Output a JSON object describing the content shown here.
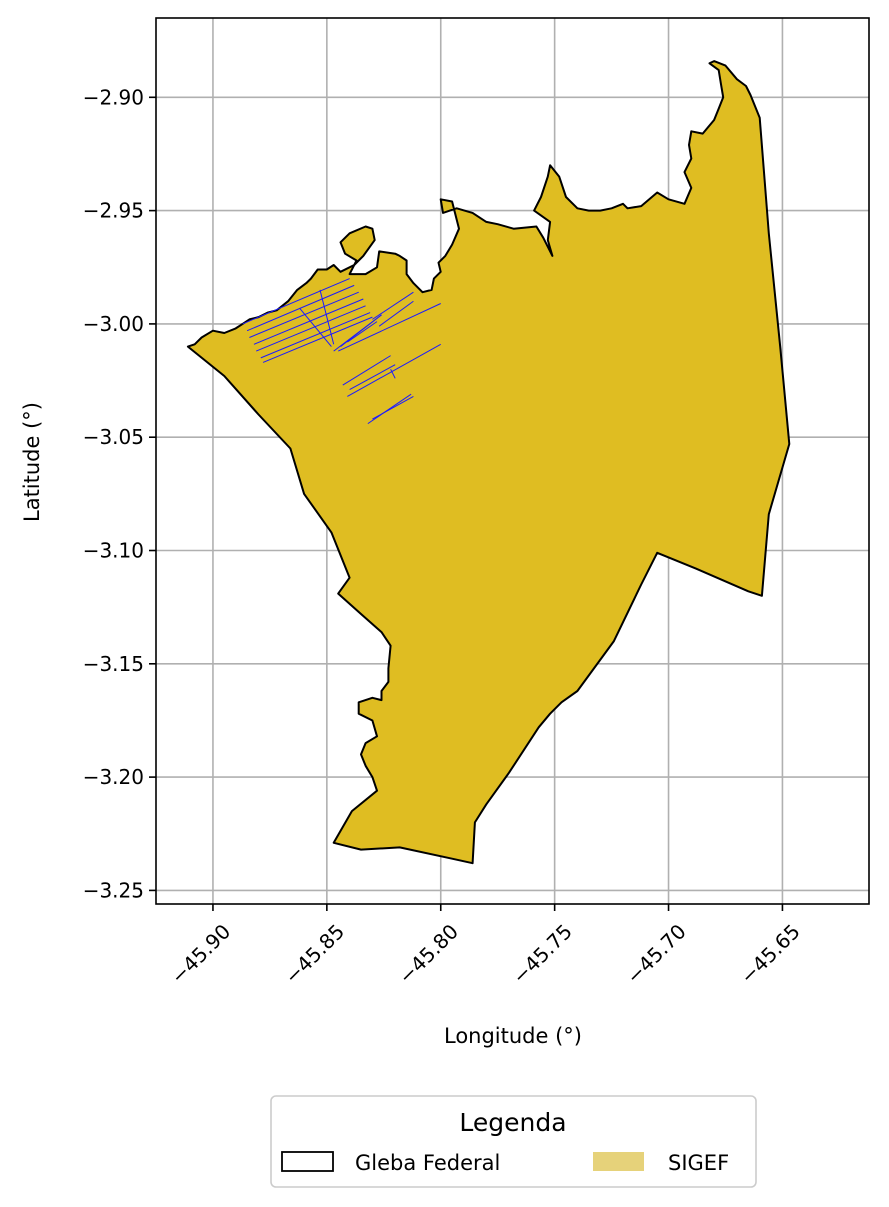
{
  "chart_data": {
    "type": "map",
    "xlabel": "Longitude (°)",
    "ylabel": "Latitude (°)",
    "xlim": [
      -45.925,
      -45.612
    ],
    "ylim": [
      -3.256,
      -2.865
    ],
    "x_ticks": [
      -45.9,
      -45.85,
      -45.8,
      -45.75,
      -45.7,
      -45.65
    ],
    "x_tick_labels": [
      "−45.90",
      "−45.85",
      "−45.80",
      "−45.75",
      "−45.70",
      "−45.65"
    ],
    "y_ticks": [
      -2.9,
      -2.95,
      -3.0,
      -3.05,
      -3.1,
      -3.15,
      -3.2,
      -3.25
    ],
    "y_tick_labels": [
      "−2.90",
      "−2.95",
      "−3.00",
      "−3.05",
      "−3.10",
      "−3.15",
      "−3.20",
      "−3.25"
    ],
    "grid": true,
    "legend": {
      "title": "Legenda",
      "placement": "bottom-center",
      "entries": [
        {
          "label": "Gleba Federal",
          "style": "outline",
          "color": "#000000"
        },
        {
          "label": "SIGEF",
          "style": "fill",
          "color": "#e6d27a"
        }
      ]
    },
    "colors": {
      "gleba_fill": "#dfbd22",
      "gleba_edge": "#000000",
      "sigef_edge": "#1a1aff"
    },
    "gleba_boundary": [
      [
        -45.911,
        -3.01
      ],
      [
        -45.895,
        -3.023
      ],
      [
        -45.88,
        -3.04
      ],
      [
        -45.866,
        -3.055
      ],
      [
        -45.86,
        -3.075
      ],
      [
        -45.848,
        -3.092
      ],
      [
        -45.84,
        -3.112
      ],
      [
        -45.845,
        -3.119
      ],
      [
        -45.835,
        -3.128
      ],
      [
        -45.826,
        -3.136
      ],
      [
        -45.822,
        -3.142
      ],
      [
        -45.823,
        -3.152
      ],
      [
        -45.823,
        -3.158
      ],
      [
        -45.826,
        -3.162
      ],
      [
        -45.826,
        -3.166
      ],
      [
        -45.83,
        -3.165
      ],
      [
        -45.836,
        -3.167
      ],
      [
        -45.836,
        -3.172
      ],
      [
        -45.83,
        -3.175
      ],
      [
        -45.828,
        -3.182
      ],
      [
        -45.833,
        -3.185
      ],
      [
        -45.835,
        -3.19
      ],
      [
        -45.833,
        -3.195
      ],
      [
        -45.83,
        -3.2
      ],
      [
        -45.828,
        -3.206
      ],
      [
        -45.839,
        -3.215
      ],
      [
        -45.847,
        -3.229
      ],
      [
        -45.835,
        -3.232
      ],
      [
        -45.818,
        -3.231
      ],
      [
        -45.795,
        -3.236
      ],
      [
        -45.786,
        -3.238
      ],
      [
        -45.785,
        -3.22
      ],
      [
        -45.78,
        -3.212
      ],
      [
        -45.77,
        -3.198
      ],
      [
        -45.757,
        -3.178
      ],
      [
        -45.752,
        -3.172
      ],
      [
        -45.747,
        -3.167
      ],
      [
        -45.74,
        -3.162
      ],
      [
        -45.724,
        -3.14
      ],
      [
        -45.712,
        -3.115
      ],
      [
        -45.705,
        -3.101
      ],
      [
        -45.688,
        -3.108
      ],
      [
        -45.665,
        -3.118
      ],
      [
        -45.659,
        -3.12
      ],
      [
        -45.656,
        -3.084
      ],
      [
        -45.647,
        -3.053
      ],
      [
        -45.651,
        -3.01
      ],
      [
        -45.656,
        -2.96
      ],
      [
        -45.66,
        -2.909
      ],
      [
        -45.664,
        -2.899
      ],
      [
        -45.666,
        -2.895
      ],
      [
        -45.67,
        -2.892
      ],
      [
        -45.675,
        -2.886
      ],
      [
        -45.68,
        -2.884
      ],
      [
        -45.682,
        -2.885
      ],
      [
        -45.678,
        -2.888
      ],
      [
        -45.677,
        -2.894
      ],
      [
        -45.676,
        -2.9
      ],
      [
        -45.678,
        -2.905
      ],
      [
        -45.68,
        -2.91
      ],
      [
        -45.685,
        -2.916
      ],
      [
        -45.69,
        -2.915
      ],
      [
        -45.691,
        -2.921
      ],
      [
        -45.69,
        -2.927
      ],
      [
        -45.693,
        -2.933
      ],
      [
        -45.69,
        -2.94
      ],
      [
        -45.693,
        -2.947
      ],
      [
        -45.7,
        -2.945
      ],
      [
        -45.705,
        -2.942
      ],
      [
        -45.712,
        -2.948
      ],
      [
        -45.718,
        -2.949
      ],
      [
        -45.72,
        -2.947
      ],
      [
        -45.725,
        -2.949
      ],
      [
        -45.73,
        -2.95
      ],
      [
        -45.735,
        -2.95
      ],
      [
        -45.74,
        -2.949
      ],
      [
        -45.745,
        -2.944
      ],
      [
        -45.748,
        -2.935
      ],
      [
        -45.752,
        -2.93
      ],
      [
        -45.753,
        -2.935
      ],
      [
        -45.756,
        -2.944
      ],
      [
        -45.759,
        -2.95
      ],
      [
        -45.752,
        -2.955
      ],
      [
        -45.753,
        -2.963
      ],
      [
        -45.751,
        -2.97
      ],
      [
        -45.755,
        -2.962
      ],
      [
        -45.758,
        -2.957
      ],
      [
        -45.768,
        -2.958
      ],
      [
        -45.775,
        -2.956
      ],
      [
        -45.78,
        -2.955
      ],
      [
        -45.786,
        -2.951
      ],
      [
        -45.793,
        -2.949
      ],
      [
        -45.796,
        -2.95
      ],
      [
        -45.799,
        -2.951
      ],
      [
        -45.8,
        -2.945
      ],
      [
        -45.795,
        -2.946
      ],
      [
        -45.792,
        -2.958
      ],
      [
        -45.795,
        -2.965
      ],
      [
        -45.798,
        -2.97
      ],
      [
        -45.801,
        -2.973
      ],
      [
        -45.8,
        -2.977
      ],
      [
        -45.803,
        -2.98
      ],
      [
        -45.804,
        -2.985
      ],
      [
        -45.808,
        -2.986
      ],
      [
        -45.812,
        -2.982
      ],
      [
        -45.815,
        -2.978
      ],
      [
        -45.815,
        -2.972
      ],
      [
        -45.818,
        -2.97
      ],
      [
        -45.82,
        -2.969
      ],
      [
        -45.827,
        -2.968
      ],
      [
        -45.828,
        -2.975
      ],
      [
        -45.833,
        -2.978
      ],
      [
        -45.84,
        -2.978
      ],
      [
        -45.837,
        -2.972
      ],
      [
        -45.842,
        -2.969
      ],
      [
        -45.844,
        -2.964
      ],
      [
        -45.84,
        -2.96
      ],
      [
        -45.833,
        -2.957
      ],
      [
        -45.83,
        -2.958
      ],
      [
        -45.829,
        -2.963
      ],
      [
        -45.834,
        -2.97
      ],
      [
        -45.838,
        -2.974
      ],
      [
        -45.844,
        -2.977
      ],
      [
        -45.847,
        -2.974
      ],
      [
        -45.85,
        -2.976
      ],
      [
        -45.854,
        -2.976
      ],
      [
        -45.857,
        -2.98
      ],
      [
        -45.859,
        -2.982
      ],
      [
        -45.863,
        -2.985
      ],
      [
        -45.867,
        -2.99
      ],
      [
        -45.872,
        -2.994
      ],
      [
        -45.876,
        -2.995
      ],
      [
        -45.88,
        -2.997
      ],
      [
        -45.884,
        -2.998
      ],
      [
        -45.887,
        -3.0
      ],
      [
        -45.89,
        -3.002
      ],
      [
        -45.895,
        -3.004
      ],
      [
        -45.9,
        -3.003
      ],
      [
        -45.905,
        -3.006
      ],
      [
        -45.908,
        -3.009
      ],
      [
        -45.911,
        -3.01
      ]
    ],
    "sigef_lines": [
      [
        [
          -45.887,
          -3.0
        ],
        [
          -45.84,
          -2.98
        ]
      ],
      [
        [
          -45.885,
          -3.003
        ],
        [
          -45.838,
          -2.983
        ]
      ],
      [
        [
          -45.884,
          -3.006
        ],
        [
          -45.836,
          -2.986
        ]
      ],
      [
        [
          -45.882,
          -3.009
        ],
        [
          -45.834,
          -2.989
        ]
      ],
      [
        [
          -45.881,
          -3.012
        ],
        [
          -45.833,
          -2.992
        ]
      ],
      [
        [
          -45.879,
          -3.015
        ],
        [
          -45.831,
          -2.995
        ]
      ],
      [
        [
          -45.878,
          -3.017
        ],
        [
          -45.83,
          -2.997
        ]
      ],
      [
        [
          -45.862,
          -2.993
        ],
        [
          -45.848,
          -3.01
        ]
      ],
      [
        [
          -45.853,
          -2.985
        ],
        [
          -45.847,
          -3.009
        ]
      ],
      [
        [
          -45.847,
          -3.012
        ],
        [
          -45.826,
          -2.996
        ]
      ],
      [
        [
          -45.844,
          -3.01
        ],
        [
          -45.826,
          -2.996
        ]
      ],
      [
        [
          -45.841,
          -3.008
        ],
        [
          -45.828,
          -2.999
        ]
      ],
      [
        [
          -45.83,
          -2.998
        ],
        [
          -45.812,
          -2.986
        ]
      ],
      [
        [
          -45.827,
          -3.001
        ],
        [
          -45.812,
          -2.99
        ]
      ],
      [
        [
          -45.845,
          -3.012
        ],
        [
          -45.8,
          -2.991
        ]
      ],
      [
        [
          -45.843,
          -3.027
        ],
        [
          -45.822,
          -3.014
        ]
      ],
      [
        [
          -45.841,
          -3.032
        ],
        [
          -45.8,
          -3.009
        ]
      ],
      [
        [
          -45.84,
          -3.029
        ],
        [
          -45.82,
          -3.018
        ]
      ],
      [
        [
          -45.832,
          -3.044
        ],
        [
          -45.813,
          -3.031
        ]
      ],
      [
        [
          -45.83,
          -3.042
        ],
        [
          -45.812,
          -3.032
        ]
      ],
      [
        [
          -45.822,
          -3.02
        ],
        [
          -45.82,
          -3.024
        ]
      ]
    ]
  }
}
